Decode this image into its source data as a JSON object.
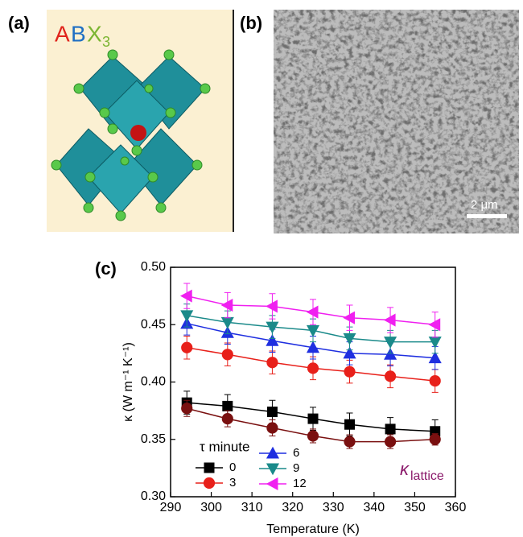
{
  "panel_a": {
    "label": "(a)",
    "formula": [
      "A",
      "B",
      "X",
      "3"
    ]
  },
  "panel_b": {
    "label": "(b)",
    "scale_bar": "2 μm"
  },
  "chart_data": {
    "type": "line",
    "label": "(c)",
    "x_label": "Temperature (K)",
    "y_label": "κ (W m⁻¹ K⁻¹)",
    "legend_title": "τ minute",
    "annotation": {
      "symbol": "κ",
      "subscript": "lattice",
      "color": "#8b1a6b"
    },
    "x": [
      294,
      304,
      315,
      325,
      334,
      344,
      355
    ],
    "xlim": [
      290,
      360
    ],
    "xticks": [
      290,
      300,
      310,
      320,
      330,
      340,
      350,
      360
    ],
    "ylim": [
      0.3,
      0.5
    ],
    "yticks": [
      {
        "value": 0.3,
        "label": "0.30"
      },
      {
        "value": 0.35,
        "label": "0.35"
      },
      {
        "value": 0.4,
        "label": "0.40"
      },
      {
        "value": 0.45,
        "label": "0.45"
      },
      {
        "value": 0.5,
        "label": "0.50"
      }
    ],
    "series": [
      {
        "name": "0",
        "color": "#000000",
        "marker": "square",
        "values": [
          0.382,
          0.379,
          0.374,
          0.368,
          0.363,
          0.359,
          0.357
        ],
        "errors": [
          0.01,
          0.01,
          0.01,
          0.01,
          0.01,
          0.01,
          0.01
        ]
      },
      {
        "name": "3",
        "color": "#e8201a",
        "marker": "circle",
        "values": [
          0.43,
          0.424,
          0.417,
          0.412,
          0.409,
          0.405,
          0.401
        ],
        "errors": [
          0.01,
          0.01,
          0.01,
          0.01,
          0.01,
          0.01,
          0.01
        ]
      },
      {
        "name": "6",
        "color": "#1f2fe0",
        "marker": "triangle-up",
        "values": [
          0.451,
          0.443,
          0.436,
          0.43,
          0.425,
          0.424,
          0.421
        ],
        "errors": [
          0.01,
          0.01,
          0.01,
          0.01,
          0.01,
          0.01,
          0.01
        ]
      },
      {
        "name": "9",
        "color": "#1a8a8a",
        "marker": "triangle-down",
        "values": [
          0.458,
          0.452,
          0.448,
          0.445,
          0.438,
          0.435,
          0.435
        ],
        "errors": [
          0.01,
          0.01,
          0.01,
          0.01,
          0.01,
          0.01,
          0.01
        ]
      },
      {
        "name": "12",
        "color": "#f020f0",
        "marker": "triangle-left",
        "values": [
          0.475,
          0.467,
          0.466,
          0.461,
          0.456,
          0.454,
          0.45
        ],
        "errors": [
          0.011,
          0.011,
          0.011,
          0.011,
          0.011,
          0.011,
          0.011
        ]
      },
      {
        "color": "#7a1010",
        "marker": "circle",
        "values": [
          0.377,
          0.368,
          0.36,
          0.353,
          0.348,
          0.348,
          0.35
        ],
        "errors": [
          0.007,
          0.007,
          0.007,
          0.006,
          0.006,
          0.006,
          0.005
        ]
      }
    ]
  }
}
